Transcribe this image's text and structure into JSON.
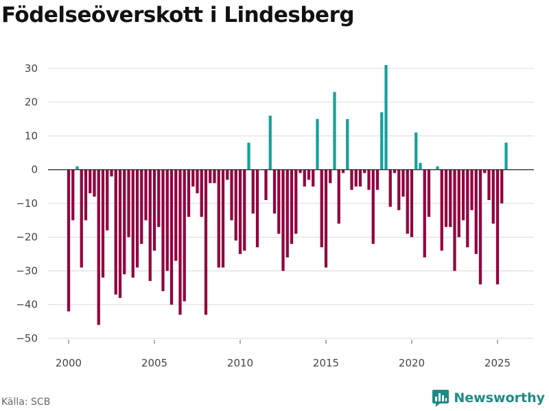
{
  "chart_data": {
    "type": "bar",
    "title": "Födelseöverskott i Lindesberg",
    "source": "Källa: SCB",
    "brand": "Newsworthy",
    "xlabel": "",
    "ylabel": "",
    "x_start": 2000.0,
    "x_step": 0.25,
    "xlim": [
      1999.1,
      2026.15
    ],
    "ylim": [
      -50,
      32
    ],
    "yticks": [
      30,
      20,
      10,
      0,
      -10,
      -20,
      -30,
      -40,
      -50
    ],
    "xticks": [
      2000,
      2005,
      2010,
      2015,
      2020,
      2025
    ],
    "colors": {
      "positive": "#17a19a",
      "negative": "#92013e",
      "brand": "#1d8a86"
    },
    "values": [
      -42,
      -15,
      1,
      -29,
      -15,
      -7,
      -8,
      -46,
      -32,
      -18,
      -2,
      -37,
      -38,
      -31,
      -20,
      -32,
      -29,
      -22,
      -15,
      -33,
      -24,
      -17,
      -36,
      -30,
      -40,
      -27,
      -43,
      -39,
      -14,
      -5,
      -7,
      -14,
      -43,
      -4,
      -4,
      -29,
      -29,
      -3,
      -15,
      -21,
      -25,
      -24,
      8,
      -13,
      -23,
      0,
      -9,
      16,
      -13,
      -19,
      -30,
      -26,
      -22,
      -19,
      -1,
      -5,
      -3,
      -5,
      15,
      -23,
      -29,
      -4,
      23,
      -16,
      -1,
      15,
      -6,
      -5,
      -5,
      -1,
      -6,
      -22,
      -6,
      17,
      31,
      -11,
      -1,
      -12,
      -8,
      -19,
      -20,
      11,
      2,
      -26,
      -14,
      0,
      1,
      -24,
      -17,
      -17,
      -30,
      -20,
      -15,
      -23,
      -12,
      -25,
      -34,
      -1,
      -9,
      -16,
      -34,
      -10,
      8
    ]
  }
}
